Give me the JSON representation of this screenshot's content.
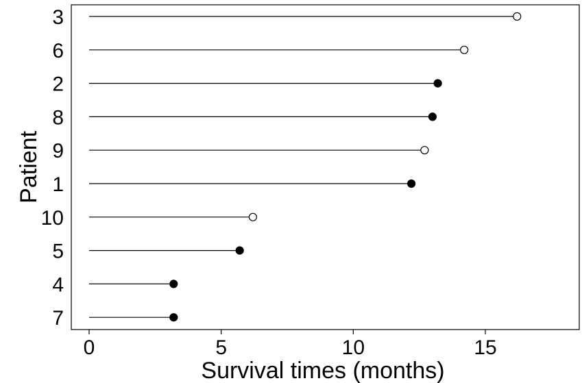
{
  "chart_data": {
    "type": "scatter",
    "subtype": "swimmer-lollipop",
    "title": "",
    "xlabel": "Survival times (months)",
    "ylabel": "Patient",
    "xlim": [
      -0.7,
      18.7
    ],
    "xticks": [
      0,
      5,
      10,
      15
    ],
    "xtick_labels": [
      "0",
      "5",
      "10",
      "15"
    ],
    "grid": false,
    "legend": "none",
    "patients": [
      {
        "patient": "3",
        "start": 0,
        "time": 16.2,
        "event": false
      },
      {
        "patient": "6",
        "start": 0,
        "time": 14.2,
        "event": false
      },
      {
        "patient": "2",
        "start": 0,
        "time": 13.2,
        "event": true
      },
      {
        "patient": "8",
        "start": 0,
        "time": 13.0,
        "event": true
      },
      {
        "patient": "9",
        "start": 0,
        "time": 12.7,
        "event": false
      },
      {
        "patient": "1",
        "start": 0,
        "time": 12.2,
        "event": true
      },
      {
        "patient": "10",
        "start": 0,
        "time": 6.2,
        "event": false
      },
      {
        "patient": "5",
        "start": 0,
        "time": 5.7,
        "event": true
      },
      {
        "patient": "4",
        "start": 0,
        "time": 3.2,
        "event": true
      },
      {
        "patient": "7",
        "start": 0,
        "time": 3.2,
        "event": true
      }
    ],
    "colors": {
      "line": "#000000",
      "event_fill": "#000000",
      "censored_fill": "#ffffff"
    }
  }
}
